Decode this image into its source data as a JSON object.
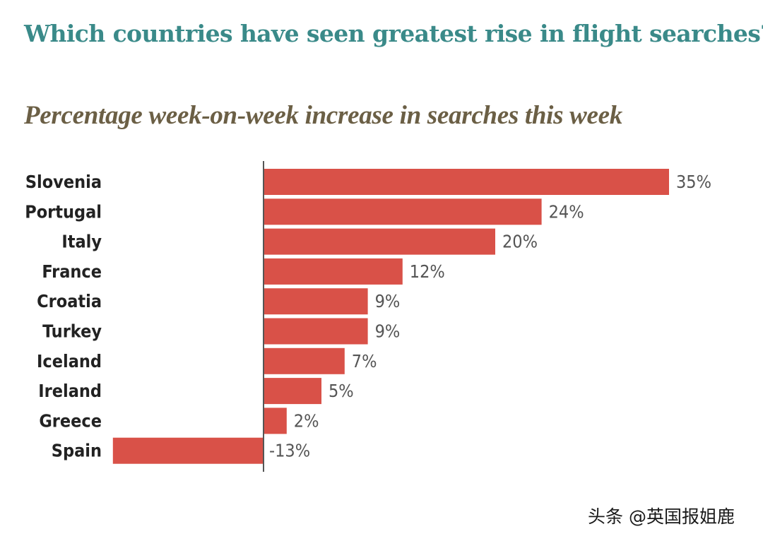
{
  "title": "Which countries have seen greatest rise in flight searches?",
  "subtitle": "Percentage week-on-week increase in searches this week",
  "watermark": "头条 @英国报姐鹿",
  "colors": {
    "title": "#3a8a89",
    "subtitle": "#6b5f45",
    "bar": "#d95148",
    "axis": "#555555",
    "category_text": "#222222",
    "value_text": "#555555"
  },
  "chart_data": {
    "type": "bar",
    "orientation": "horizontal",
    "title": "Which countries have seen greatest rise in flight searches?",
    "subtitle": "Percentage week-on-week increase in searches this week",
    "categories": [
      "Slovenia",
      "Portugal",
      "Italy",
      "France",
      "Croatia",
      "Turkey",
      "Iceland",
      "Ireland",
      "Greece",
      "Spain"
    ],
    "values": [
      35,
      24,
      20,
      12,
      9,
      9,
      7,
      5,
      2,
      -13
    ],
    "value_labels": [
      "35%",
      "24%",
      "20%",
      "12%",
      "9%",
      "9%",
      "7%",
      "5%",
      "2%",
      "-13%"
    ],
    "xlabel": "",
    "ylabel": "",
    "xlim": [
      -13,
      35
    ],
    "grid": false,
    "legend": "none"
  }
}
